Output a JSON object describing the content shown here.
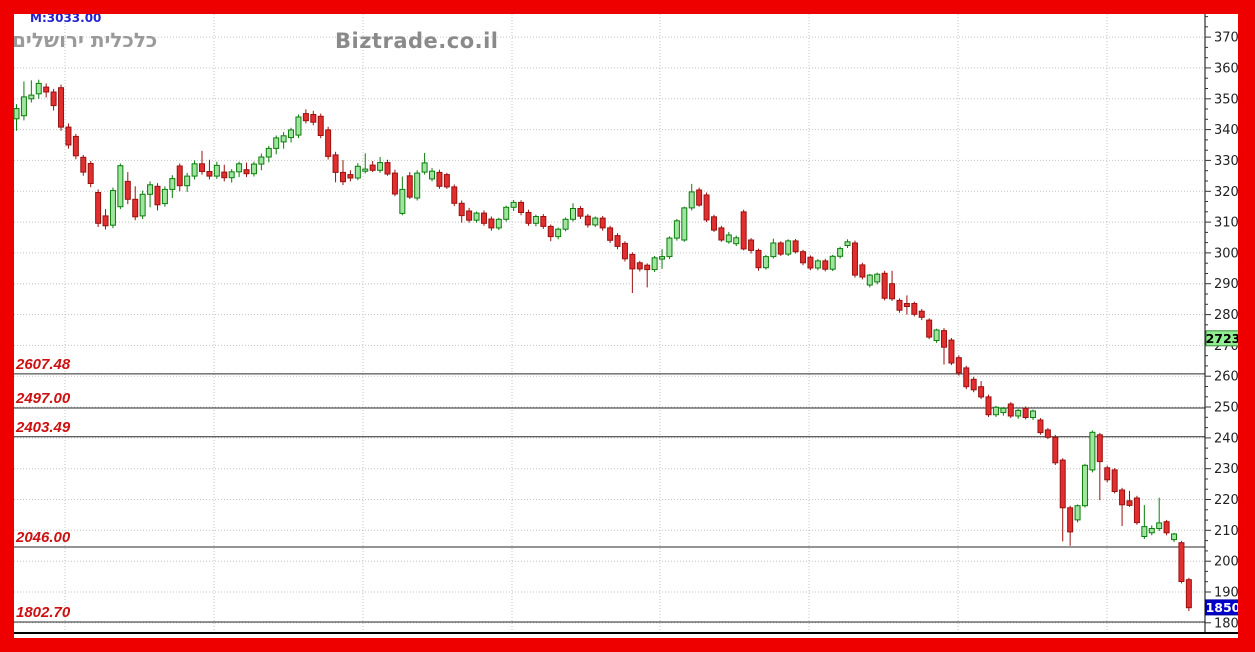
{
  "frame": {
    "border_color": "#ee0000",
    "background": "#ffffff"
  },
  "chart_data": {
    "type": "candlestick",
    "title": "כלכלית ירושלים",
    "watermark": "Biztrade.co.il",
    "ma_label": "M:3033.00",
    "y_axis": {
      "side": "right",
      "ticks": [
        3700,
        3600,
        3500,
        3400,
        3300,
        3200,
        3100,
        3000,
        2900,
        2800,
        2700,
        2600,
        2500,
        2400,
        2300,
        2200,
        2100,
        2000,
        1900,
        1800
      ],
      "price_at_plot_top": 3775,
      "price_at_plot_bottom": 1767
    },
    "levels": [
      {
        "price": 2607.48,
        "label": "2607.48"
      },
      {
        "price": 2497.0,
        "label": "2497.00"
      },
      {
        "price": 2403.49,
        "label": "2403.49"
      },
      {
        "price": 2046.0,
        "label": "2046.00"
      },
      {
        "price": 1802.7,
        "label": "1802.70"
      }
    ],
    "price_markers": [
      {
        "label": "2723",
        "price": 2723,
        "bg": "#90ee90",
        "fg": "#000000",
        "border": "#3c8a3c"
      },
      {
        "label": "1850",
        "price": 1850,
        "bg": "#0000cc",
        "fg": "#ffffff",
        "border": "#000099"
      }
    ],
    "colors": {
      "up_fill": "#9fe49f",
      "up_stroke": "#0b7d0b",
      "down_fill": "#e12e2e",
      "down_stroke": "#991111",
      "gridline": "#c3c3c3",
      "level_line": "#2a2a2a",
      "axis": "#000000",
      "title_text": "#9a9a9a",
      "level_text": "#cc1111",
      "ma_text": "#2323cd"
    },
    "candle_columns": [
      "open",
      "high",
      "low",
      "close"
    ],
    "candles": [
      [
        3435,
        3482,
        3396,
        3468
      ],
      [
        3445,
        3556,
        3430,
        3506
      ],
      [
        3500,
        3560,
        3488,
        3512
      ],
      [
        3516,
        3562,
        3500,
        3550
      ],
      [
        3538,
        3550,
        3504,
        3522
      ],
      [
        3522,
        3532,
        3462,
        3478
      ],
      [
        3536,
        3546,
        3396,
        3408
      ],
      [
        3408,
        3420,
        3338,
        3350
      ],
      [
        3378,
        3386,
        3304,
        3315
      ],
      [
        3310,
        3318,
        3250,
        3262
      ],
      [
        3290,
        3298,
        3213,
        3225
      ],
      [
        3196,
        3206,
        3084,
        3096
      ],
      [
        3120,
        3142,
        3076,
        3088
      ],
      [
        3090,
        3212,
        3080,
        3202
      ],
      [
        3150,
        3290,
        3142,
        3283
      ],
      [
        3232,
        3262,
        3158,
        3174
      ],
      [
        3174,
        3216,
        3106,
        3117
      ],
      [
        3120,
        3202,
        3110,
        3190
      ],
      [
        3190,
        3232,
        3148,
        3221
      ],
      [
        3216,
        3226,
        3138,
        3156
      ],
      [
        3160,
        3216,
        3150,
        3206
      ],
      [
        3206,
        3252,
        3178,
        3241
      ],
      [
        3282,
        3290,
        3200,
        3218
      ],
      [
        3218,
        3260,
        3198,
        3249
      ],
      [
        3249,
        3300,
        3238,
        3289
      ],
      [
        3289,
        3331,
        3254,
        3264
      ],
      [
        3264,
        3302,
        3238,
        3249
      ],
      [
        3249,
        3296,
        3240,
        3284
      ],
      [
        3262,
        3286,
        3232,
        3244
      ],
      [
        3244,
        3272,
        3228,
        3263
      ],
      [
        3263,
        3296,
        3246,
        3289
      ],
      [
        3270,
        3293,
        3246,
        3257
      ],
      [
        3257,
        3296,
        3248,
        3288
      ],
      [
        3288,
        3322,
        3268,
        3311
      ],
      [
        3311,
        3347,
        3294,
        3339
      ],
      [
        3339,
        3381,
        3320,
        3373
      ],
      [
        3360,
        3392,
        3338,
        3380
      ],
      [
        3374,
        3406,
        3358,
        3399
      ],
      [
        3382,
        3449,
        3372,
        3441
      ],
      [
        3452,
        3466,
        3420,
        3429
      ],
      [
        3449,
        3461,
        3414,
        3424
      ],
      [
        3443,
        3452,
        3372,
        3381
      ],
      [
        3399,
        3409,
        3303,
        3313
      ],
      [
        3318,
        3328,
        3229,
        3261
      ],
      [
        3261,
        3301,
        3220,
        3231
      ],
      [
        3254,
        3268,
        3232,
        3243
      ],
      [
        3243,
        3291,
        3236,
        3281
      ],
      [
        3265,
        3323,
        3258,
        3272
      ],
      [
        3285,
        3298,
        3262,
        3268
      ],
      [
        3268,
        3311,
        3260,
        3293
      ],
      [
        3293,
        3302,
        3250,
        3256
      ],
      [
        3259,
        3270,
        3184,
        3191
      ],
      [
        3128,
        3248,
        3122,
        3206
      ],
      [
        3250,
        3262,
        3175,
        3181
      ],
      [
        3178,
        3268,
        3170,
        3259
      ],
      [
        3262,
        3324,
        3254,
        3292
      ],
      [
        3240,
        3275,
        3232,
        3265
      ],
      [
        3261,
        3270,
        3208,
        3216
      ],
      [
        3254,
        3260,
        3208,
        3214
      ],
      [
        3214,
        3222,
        3152,
        3161
      ],
      [
        3161,
        3170,
        3098,
        3121
      ],
      [
        3136,
        3146,
        3098,
        3106
      ],
      [
        3106,
        3134,
        3098,
        3129
      ],
      [
        3129,
        3138,
        3088,
        3096
      ],
      [
        3110,
        3118,
        3072,
        3081
      ],
      [
        3081,
        3114,
        3074,
        3109
      ],
      [
        3109,
        3153,
        3102,
        3148
      ],
      [
        3148,
        3172,
        3136,
        3164
      ],
      [
        3164,
        3171,
        3122,
        3131
      ],
      [
        3131,
        3140,
        3088,
        3096
      ],
      [
        3096,
        3124,
        3086,
        3118
      ],
      [
        3118,
        3126,
        3078,
        3086
      ],
      [
        3086,
        3092,
        3038,
        3053
      ],
      [
        3053,
        3082,
        3044,
        3077
      ],
      [
        3077,
        3115,
        3070,
        3109
      ],
      [
        3109,
        3161,
        3102,
        3144
      ],
      [
        3144,
        3152,
        3110,
        3119
      ],
      [
        3119,
        3126,
        3082,
        3091
      ],
      [
        3091,
        3118,
        3084,
        3113
      ],
      [
        3113,
        3120,
        3072,
        3081
      ],
      [
        3081,
        3088,
        3032,
        3041
      ],
      [
        3056,
        3064,
        3012,
        3021
      ],
      [
        3031,
        3038,
        2972,
        2981
      ],
      [
        2995,
        3002,
        2870,
        2948
      ],
      [
        2968,
        2974,
        2940,
        2948
      ],
      [
        2960,
        2966,
        2888,
        2946
      ],
      [
        2946,
        2990,
        2938,
        2984
      ],
      [
        2980,
        3012,
        2948,
        2988
      ],
      [
        2988,
        3054,
        2980,
        3048
      ],
      [
        3048,
        3110,
        3040,
        3104
      ],
      [
        3042,
        3150,
        3036,
        3146
      ],
      [
        3146,
        3224,
        3138,
        3198
      ],
      [
        3204,
        3212,
        3150,
        3155
      ],
      [
        3188,
        3196,
        3100,
        3107
      ],
      [
        3117,
        3124,
        3068,
        3074
      ],
      [
        3081,
        3088,
        3036,
        3042
      ],
      [
        3036,
        3068,
        3030,
        3058
      ],
      [
        3030,
        3056,
        3022,
        3049
      ],
      [
        3133,
        3140,
        3008,
        3013
      ],
      [
        3042,
        3048,
        2998,
        3008
      ],
      [
        3008,
        3014,
        2942,
        2952
      ],
      [
        2952,
        2994,
        2946,
        2988
      ],
      [
        2988,
        3046,
        2982,
        3032
      ],
      [
        3032,
        3038,
        2990,
        2996
      ],
      [
        2996,
        3044,
        2990,
        3039
      ],
      [
        3039,
        3045,
        2998,
        3004
      ],
      [
        3004,
        3010,
        2960,
        2968
      ],
      [
        2986,
        2992,
        2944,
        2951
      ],
      [
        2951,
        2980,
        2944,
        2974
      ],
      [
        2974,
        2981,
        2940,
        2947
      ],
      [
        2947,
        2994,
        2941,
        2989
      ],
      [
        2989,
        3020,
        2982,
        3014
      ],
      [
        3024,
        3044,
        3016,
        3036
      ],
      [
        3032,
        3040,
        2920,
        2928
      ],
      [
        2961,
        2968,
        2914,
        2922
      ],
      [
        2896,
        2932,
        2888,
        2928
      ],
      [
        2906,
        2936,
        2898,
        2931
      ],
      [
        2934,
        2942,
        2846,
        2853
      ],
      [
        2900,
        2942,
        2844,
        2851
      ],
      [
        2846,
        2852,
        2806,
        2814
      ],
      [
        2836,
        2862,
        2800,
        2826
      ],
      [
        2836,
        2842,
        2794,
        2801
      ],
      [
        2811,
        2818,
        2782,
        2791
      ],
      [
        2782,
        2788,
        2720,
        2727
      ],
      [
        2716,
        2754,
        2708,
        2750
      ],
      [
        2748,
        2756,
        2638,
        2694
      ],
      [
        2717,
        2724,
        2636,
        2643
      ],
      [
        2660,
        2668,
        2602,
        2611
      ],
      [
        2627,
        2634,
        2558,
        2566
      ],
      [
        2590,
        2598,
        2548,
        2556
      ],
      [
        2566,
        2584,
        2526,
        2533
      ],
      [
        2533,
        2540,
        2468,
        2475
      ],
      [
        2475,
        2504,
        2468,
        2499
      ],
      [
        2482,
        2500,
        2472,
        2496
      ],
      [
        2510,
        2516,
        2464,
        2471
      ],
      [
        2471,
        2494,
        2462,
        2489
      ],
      [
        2496,
        2502,
        2460,
        2466
      ],
      [
        2466,
        2492,
        2458,
        2487
      ],
      [
        2458,
        2464,
        2410,
        2417
      ],
      [
        2426,
        2432,
        2396,
        2402
      ],
      [
        2402,
        2410,
        2312,
        2319
      ],
      [
        2328,
        2334,
        2064,
        2173
      ],
      [
        2173,
        2180,
        2050,
        2095
      ],
      [
        2134,
        2184,
        2126,
        2180
      ],
      [
        2180,
        2316,
        2174,
        2311
      ],
      [
        2296,
        2424,
        2288,
        2418
      ],
      [
        2410,
        2416,
        2198,
        2323
      ],
      [
        2303,
        2310,
        2256,
        2264
      ],
      [
        2296,
        2302,
        2220,
        2226
      ],
      [
        2231,
        2238,
        2114,
        2183
      ],
      [
        2196,
        2228,
        2176,
        2181
      ],
      [
        2205,
        2212,
        2118,
        2125
      ],
      [
        2080,
        2182,
        2072,
        2112
      ],
      [
        2092,
        2116,
        2084,
        2106
      ],
      [
        2106,
        2206,
        2098,
        2124
      ],
      [
        2128,
        2134,
        2084,
        2092
      ],
      [
        2070,
        2092,
        2062,
        2088
      ],
      [
        2060,
        2066,
        1928,
        1934
      ],
      [
        1940,
        1946,
        1838,
        1849
      ]
    ]
  }
}
